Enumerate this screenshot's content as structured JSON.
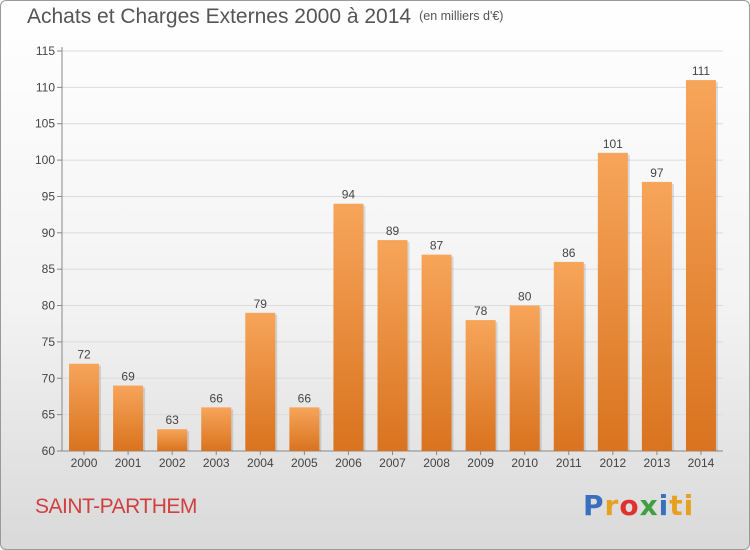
{
  "chart_data": {
    "type": "bar",
    "title": "Achats et Charges Externes 2000 à 2014",
    "unit": "(en milliers d'€)",
    "categories": [
      "2000",
      "2001",
      "2002",
      "2003",
      "2004",
      "2005",
      "2006",
      "2007",
      "2008",
      "2009",
      "2010",
      "2011",
      "2012",
      "2013",
      "2014"
    ],
    "values": [
      72,
      69,
      63,
      66,
      79,
      66,
      94,
      89,
      87,
      78,
      80,
      86,
      101,
      97,
      111
    ],
    "ylim": [
      60,
      115
    ],
    "yticks": [
      60,
      65,
      70,
      75,
      80,
      85,
      90,
      95,
      100,
      105,
      110,
      115
    ],
    "xlabel": "",
    "ylabel": "",
    "bar_color_top": "#f7a55a",
    "bar_color_bottom": "#d9731f"
  },
  "footer": {
    "place": "SAINT-PARTHEM",
    "logo": [
      "P",
      "r",
      "o",
      "x",
      "i",
      "ti"
    ]
  }
}
